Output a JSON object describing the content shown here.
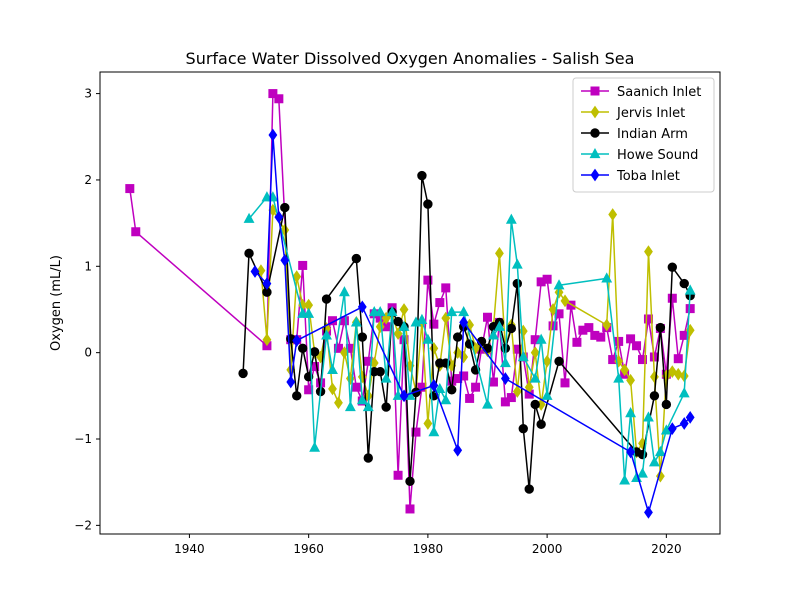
{
  "chart_data": {
    "type": "line",
    "title": "Surface Water Dissolved Oxygen Anomalies - Salish Sea",
    "xlabel": "",
    "ylabel": "Oxygen (mL/L)",
    "xlim": [
      1925,
      2029
    ],
    "ylim": [
      -2.1,
      3.25
    ],
    "xticks": [
      1940,
      1960,
      1980,
      2000,
      2020
    ],
    "yticks": [
      -2,
      -1,
      0,
      1,
      2,
      3
    ],
    "grid": false,
    "legend_position": "top-right",
    "series": [
      {
        "name": "Saanich Inlet",
        "color": "#bf00bf",
        "marker": "square",
        "x": [
          1930,
          1931,
          1953,
          1954,
          1955,
          1957,
          1958,
          1959,
          1960,
          1961,
          1962,
          1963,
          1964,
          1965,
          1966,
          1967,
          1968,
          1969,
          1970,
          1971,
          1972,
          1973,
          1974,
          1975,
          1976,
          1977,
          1978,
          1979,
          1980,
          1981,
          1982,
          1983,
          1984,
          1985,
          1986,
          1987,
          1988,
          1989,
          1990,
          1991,
          1992,
          1993,
          1994,
          1995,
          1996,
          1997,
          1998,
          1999,
          2000,
          2001,
          2002,
          2003,
          2004,
          2005,
          2006,
          2007,
          2008,
          2009,
          2010,
          2011,
          2012,
          2013,
          2014,
          2015,
          2016,
          2017,
          2018,
          2019,
          2020,
          2021,
          2022,
          2023,
          2024
        ],
        "values": [
          1.9,
          1.4,
          0.08,
          3.0,
          2.94,
          0.15,
          0.15,
          1.01,
          -0.43,
          -0.16,
          -0.35,
          0.25,
          0.37,
          0.05,
          0.37,
          0.05,
          -0.4,
          -0.56,
          -0.1,
          0.45,
          0.4,
          0.3,
          0.52,
          -1.42,
          0.15,
          -1.81,
          -0.92,
          -0.4,
          0.84,
          0.33,
          0.58,
          0.75,
          -0.33,
          -0.3,
          -0.27,
          -0.53,
          -0.4,
          0.04,
          0.41,
          -0.34,
          0.35,
          -0.57,
          -0.52,
          0.04,
          -0.05,
          -0.48,
          0.15,
          0.82,
          0.85,
          0.31,
          0.45,
          -0.35,
          0.55,
          0.12,
          0.26,
          0.29,
          0.2,
          0.18,
          0.29,
          -0.08,
          0.13,
          -0.25,
          0.16,
          0.08,
          -0.08,
          0.39,
          -0.05,
          0.28,
          -0.25,
          0.63,
          -0.07,
          0.2,
          0.51
        ]
      },
      {
        "name": "Jervis Inlet",
        "color": "#bfbf00",
        "marker": "diamond",
        "x": [
          1952,
          1953,
          1954,
          1956,
          1957,
          1958,
          1959,
          1960,
          1961,
          1962,
          1963,
          1964,
          1965,
          1966,
          1967,
          1968,
          1969,
          1970,
          1971,
          1972,
          1973,
          1974,
          1975,
          1976,
          1977,
          1978,
          1979,
          1980,
          1981,
          1982,
          1983,
          1984,
          1985,
          1986,
          1987,
          1988,
          1989,
          1990,
          1991,
          1992,
          1993,
          1994,
          1995,
          1996,
          1997,
          1998,
          1999,
          2000,
          2001,
          2002,
          2003,
          2010,
          2011,
          2012,
          2013,
          2014,
          2015,
          2016,
          2017,
          2018,
          2019,
          2020,
          2021,
          2022,
          2023,
          2024
        ],
        "values": [
          0.95,
          0.15,
          1.65,
          1.42,
          -0.2,
          0.88,
          0.55,
          0.55,
          0.0,
          -0.05,
          0.28,
          -0.42,
          -0.58,
          0.0,
          -0.3,
          0.35,
          -0.28,
          -0.5,
          -0.12,
          0.3,
          0.4,
          0.45,
          0.22,
          0.5,
          -0.15,
          -0.45,
          0.35,
          -0.82,
          0.05,
          -0.15,
          0.4,
          -0.15,
          0.0,
          -0.05,
          0.32,
          0.05,
          0.1,
          0.02,
          0.3,
          1.15,
          0.05,
          0.32,
          -0.45,
          0.25,
          -0.4,
          0.0,
          -0.6,
          -0.1,
          0.5,
          0.7,
          0.6,
          0.32,
          1.6,
          -0.1,
          -0.2,
          -0.32,
          -1.15,
          -1.05,
          1.17,
          -0.28,
          -1.43,
          -0.27,
          -0.22,
          -0.25,
          -0.27,
          0.26
        ]
      },
      {
        "name": "Indian Arm",
        "color": "#000000",
        "marker": "circle",
        "x": [
          1949,
          1950,
          1953,
          1956,
          1957,
          1958,
          1959,
          1960,
          1961,
          1962,
          1963,
          1968,
          1969,
          1970,
          1971,
          1972,
          1973,
          1974,
          1975,
          1976,
          1977,
          1978,
          1979,
          1980,
          1981,
          1982,
          1983,
          1984,
          1985,
          1986,
          1987,
          1988,
          1989,
          1990,
          1991,
          1992,
          1993,
          1994,
          1995,
          1996,
          1997,
          1998,
          1999,
          2002,
          2015,
          2016,
          2018,
          2019,
          2020,
          2021,
          2023,
          2024
        ],
        "values": [
          -0.24,
          1.15,
          0.7,
          1.68,
          0.16,
          -0.5,
          0.05,
          -0.28,
          0.01,
          -0.45,
          0.62,
          1.09,
          0.18,
          -1.22,
          -0.22,
          -0.22,
          -0.63,
          0.47,
          0.36,
          0.3,
          -1.49,
          -0.46,
          2.05,
          1.72,
          -0.5,
          -0.12,
          -0.12,
          -0.43,
          0.18,
          0.3,
          0.1,
          -0.2,
          0.13,
          0.05,
          0.3,
          0.35,
          0.05,
          0.28,
          0.8,
          -0.88,
          -1.58,
          -0.6,
          -0.83,
          -0.1,
          -1.15,
          -1.18,
          -0.5,
          0.29,
          -0.6,
          0.99,
          0.8,
          0.66
        ]
      },
      {
        "name": "Howe Sound",
        "color": "#00bfbf",
        "marker": "triangle",
        "x": [
          1950,
          1953,
          1954,
          1959,
          1960,
          1961,
          1963,
          1964,
          1966,
          1967,
          1968,
          1969,
          1970,
          1971,
          1972,
          1973,
          1974,
          1975,
          1976,
          1977,
          1978,
          1979,
          1980,
          1981,
          1982,
          1983,
          1984,
          1986,
          1990,
          1991,
          1992,
          1993,
          1994,
          1995,
          1996,
          1998,
          1999,
          2000,
          2002,
          2010,
          2012,
          2013,
          2014,
          2015,
          2016,
          2017,
          2018,
          2019,
          2020,
          2023,
          2024
        ],
        "values": [
          1.55,
          1.8,
          1.8,
          0.45,
          0.45,
          -1.1,
          0.2,
          -0.2,
          0.7,
          -0.63,
          0.35,
          -0.55,
          -0.63,
          0.47,
          0.47,
          -0.3,
          0.47,
          -0.5,
          0.3,
          -0.5,
          0.35,
          0.38,
          0.15,
          -0.92,
          -0.42,
          -0.55,
          0.47,
          0.47,
          -0.6,
          0.2,
          0.3,
          -0.12,
          1.54,
          1.02,
          -0.05,
          -0.3,
          0.15,
          -0.5,
          0.78,
          0.86,
          -0.3,
          -1.48,
          -0.7,
          -1.45,
          -1.4,
          -0.75,
          -1.27,
          -1.15,
          -0.9,
          -0.47,
          0.72
        ]
      },
      {
        "name": "Toba Inlet",
        "color": "#0000ff",
        "marker": "diamond",
        "x": [
          1951,
          1953,
          1954,
          1955,
          1956,
          1957,
          1958,
          1969,
          1976,
          1981,
          1985,
          1986,
          1993,
          2014,
          2017,
          2021,
          2023,
          2024
        ],
        "values": [
          0.94,
          0.8,
          2.52,
          1.57,
          1.07,
          -0.34,
          0.14,
          0.53,
          -0.5,
          -0.38,
          -1.13,
          0.35,
          -0.3,
          -1.15,
          -1.85,
          -0.88,
          -0.82,
          -0.75
        ]
      }
    ]
  }
}
